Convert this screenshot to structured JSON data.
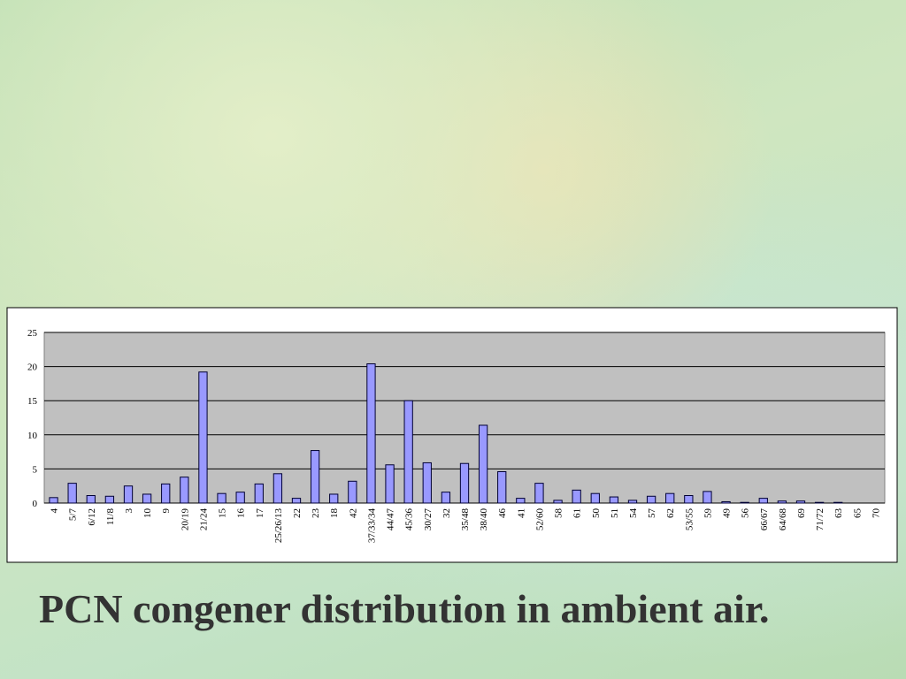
{
  "chart_data": {
    "type": "bar",
    "title": "PCN congener distribution in ambient air.",
    "categories": [
      "4",
      "5/7",
      "6/12",
      "11/8",
      "3",
      "10",
      "9",
      "20/19",
      "21/24",
      "15",
      "16",
      "17",
      "25/26/13",
      "22",
      "23",
      "18",
      "42",
      "37/33/34",
      "44/47",
      "45/36",
      "30/27",
      "32",
      "35/48",
      "38/40",
      "46",
      "41",
      "52/60",
      "58",
      "61",
      "50",
      "51",
      "54",
      "57",
      "62",
      "53/55",
      "59",
      "49",
      "56",
      "66/67",
      "64/68",
      "69",
      "71/72",
      "63",
      "65",
      "70"
    ],
    "values": [
      0.8,
      2.9,
      1.1,
      1.0,
      2.5,
      1.3,
      2.8,
      3.8,
      19.2,
      1.4,
      1.6,
      2.8,
      4.3,
      0.7,
      7.7,
      1.3,
      3.2,
      20.4,
      5.6,
      15.0,
      5.9,
      1.6,
      5.8,
      11.4,
      4.6,
      0.7,
      2.9,
      0.4,
      1.9,
      1.4,
      0.9,
      0.4,
      1.0,
      1.4,
      1.1,
      1.7,
      0.2,
      0.1,
      0.7,
      0.3,
      0.3,
      0.1,
      0.1,
      0,
      0
    ],
    "color": "#9999ff",
    "ylim": [
      0,
      25
    ],
    "yticks": [
      0,
      5,
      10,
      15,
      20,
      25
    ],
    "grid": true
  }
}
